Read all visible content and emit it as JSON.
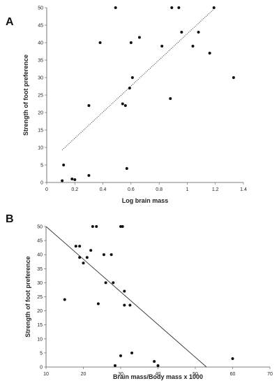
{
  "chart_data": [
    {
      "panel": "A",
      "type": "scatter",
      "xlabel": "Log brain mass",
      "ylabel": "Strength of foot preference",
      "xlim": [
        0,
        1.4
      ],
      "ylim": [
        0,
        50
      ],
      "xticks": [
        "0",
        "0.2",
        "0.4",
        "0.6",
        "0.8",
        "1",
        "1.2",
        "1.4"
      ],
      "yticks": [
        "0",
        "5",
        "10",
        "15",
        "20",
        "25",
        "30",
        "35",
        "40",
        "45",
        "50"
      ],
      "trendline": {
        "style": "dotted",
        "x": [
          0.11,
          1.2
        ],
        "y": [
          9.3,
          50
        ]
      },
      "points": [
        {
          "x": 0.11,
          "y": 0.5
        },
        {
          "x": 0.12,
          "y": 5
        },
        {
          "x": 0.18,
          "y": 1
        },
        {
          "x": 0.2,
          "y": 0.8
        },
        {
          "x": 0.3,
          "y": 2
        },
        {
          "x": 0.3,
          "y": 22
        },
        {
          "x": 0.38,
          "y": 40
        },
        {
          "x": 0.49,
          "y": 50
        },
        {
          "x": 0.54,
          "y": 22.5
        },
        {
          "x": 0.56,
          "y": 22
        },
        {
          "x": 0.57,
          "y": 4
        },
        {
          "x": 0.59,
          "y": 27
        },
        {
          "x": 0.6,
          "y": 40
        },
        {
          "x": 0.61,
          "y": 30
        },
        {
          "x": 0.66,
          "y": 41.5
        },
        {
          "x": 0.82,
          "y": 39
        },
        {
          "x": 0.88,
          "y": 24
        },
        {
          "x": 0.89,
          "y": 50
        },
        {
          "x": 0.94,
          "y": 50
        },
        {
          "x": 0.96,
          "y": 43
        },
        {
          "x": 1.04,
          "y": 39
        },
        {
          "x": 1.08,
          "y": 43
        },
        {
          "x": 1.16,
          "y": 37
        },
        {
          "x": 1.19,
          "y": 50
        },
        {
          "x": 1.33,
          "y": 30
        }
      ]
    },
    {
      "panel": "B",
      "type": "scatter",
      "xlabel": "Brain mass/Body mass x 1000",
      "ylabel": "Strength of foot preference",
      "xlim": [
        10,
        70
      ],
      "ylim": [
        0,
        50
      ],
      "xticks": [
        "10",
        "20",
        "30",
        "40",
        "50",
        "60",
        "70"
      ],
      "yticks": [
        "0",
        "5",
        "10",
        "15",
        "20",
        "25",
        "30",
        "35",
        "40",
        "45",
        "50"
      ],
      "trendline": {
        "style": "solid",
        "x": [
          10,
          53
        ],
        "y": [
          50,
          0
        ]
      },
      "points": [
        {
          "x": 15,
          "y": 24
        },
        {
          "x": 18,
          "y": 43
        },
        {
          "x": 19,
          "y": 43
        },
        {
          "x": 19,
          "y": 39
        },
        {
          "x": 20,
          "y": 37
        },
        {
          "x": 21,
          "y": 39
        },
        {
          "x": 22,
          "y": 41.5
        },
        {
          "x": 22.5,
          "y": 50
        },
        {
          "x": 23.5,
          "y": 50
        },
        {
          "x": 24,
          "y": 22.5
        },
        {
          "x": 25.5,
          "y": 40
        },
        {
          "x": 26,
          "y": 30
        },
        {
          "x": 27.5,
          "y": 40
        },
        {
          "x": 28,
          "y": 30
        },
        {
          "x": 28.5,
          "y": 0.5
        },
        {
          "x": 30,
          "y": 4
        },
        {
          "x": 30,
          "y": 50
        },
        {
          "x": 30.5,
          "y": 50
        },
        {
          "x": 31,
          "y": 27
        },
        {
          "x": 31,
          "y": 22
        },
        {
          "x": 32.5,
          "y": 22
        },
        {
          "x": 33,
          "y": 5
        },
        {
          "x": 39,
          "y": 2
        },
        {
          "x": 40,
          "y": 0.5
        },
        {
          "x": 60,
          "y": 3
        }
      ]
    }
  ]
}
